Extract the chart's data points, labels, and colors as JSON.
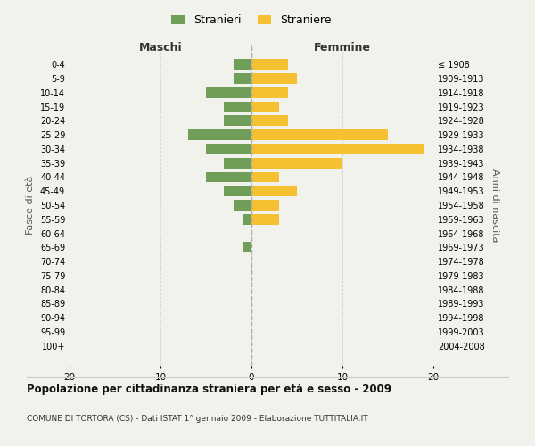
{
  "age_groups": [
    "0-4",
    "5-9",
    "10-14",
    "15-19",
    "20-24",
    "25-29",
    "30-34",
    "35-39",
    "40-44",
    "45-49",
    "50-54",
    "55-59",
    "60-64",
    "65-69",
    "70-74",
    "75-79",
    "80-84",
    "85-89",
    "90-94",
    "95-99",
    "100+"
  ],
  "birth_years": [
    "2004-2008",
    "1999-2003",
    "1994-1998",
    "1989-1993",
    "1984-1988",
    "1979-1983",
    "1974-1978",
    "1969-1973",
    "1964-1968",
    "1959-1963",
    "1954-1958",
    "1949-1953",
    "1944-1948",
    "1939-1943",
    "1934-1938",
    "1929-1933",
    "1924-1928",
    "1919-1923",
    "1914-1918",
    "1909-1913",
    "≤ 1908"
  ],
  "males": [
    2,
    2,
    5,
    3,
    3,
    7,
    5,
    3,
    5,
    3,
    2,
    1,
    0,
    1,
    0,
    0,
    0,
    0,
    0,
    0,
    0
  ],
  "females": [
    4,
    5,
    4,
    3,
    4,
    15,
    19,
    10,
    3,
    5,
    3,
    3,
    0,
    0,
    0,
    0,
    0,
    0,
    0,
    0,
    0
  ],
  "male_color": "#6e9e57",
  "female_color": "#f5c132",
  "background_color": "#f2f2ec",
  "grid_color": "#d0d0cc",
  "title": "Popolazione per cittadinanza straniera per età e sesso - 2009",
  "subtitle": "COMUNE DI TORTORA (CS) - Dati ISTAT 1° gennaio 2009 - Elaborazione TUTTITALIA.IT",
  "xlabel_left": "Maschi",
  "xlabel_right": "Femmine",
  "ylabel_left": "Fasce di età",
  "ylabel_right": "Anni di nascita",
  "legend_males": "Stranieri",
  "legend_females": "Straniere",
  "xlim": 20,
  "bar_height": 0.75
}
